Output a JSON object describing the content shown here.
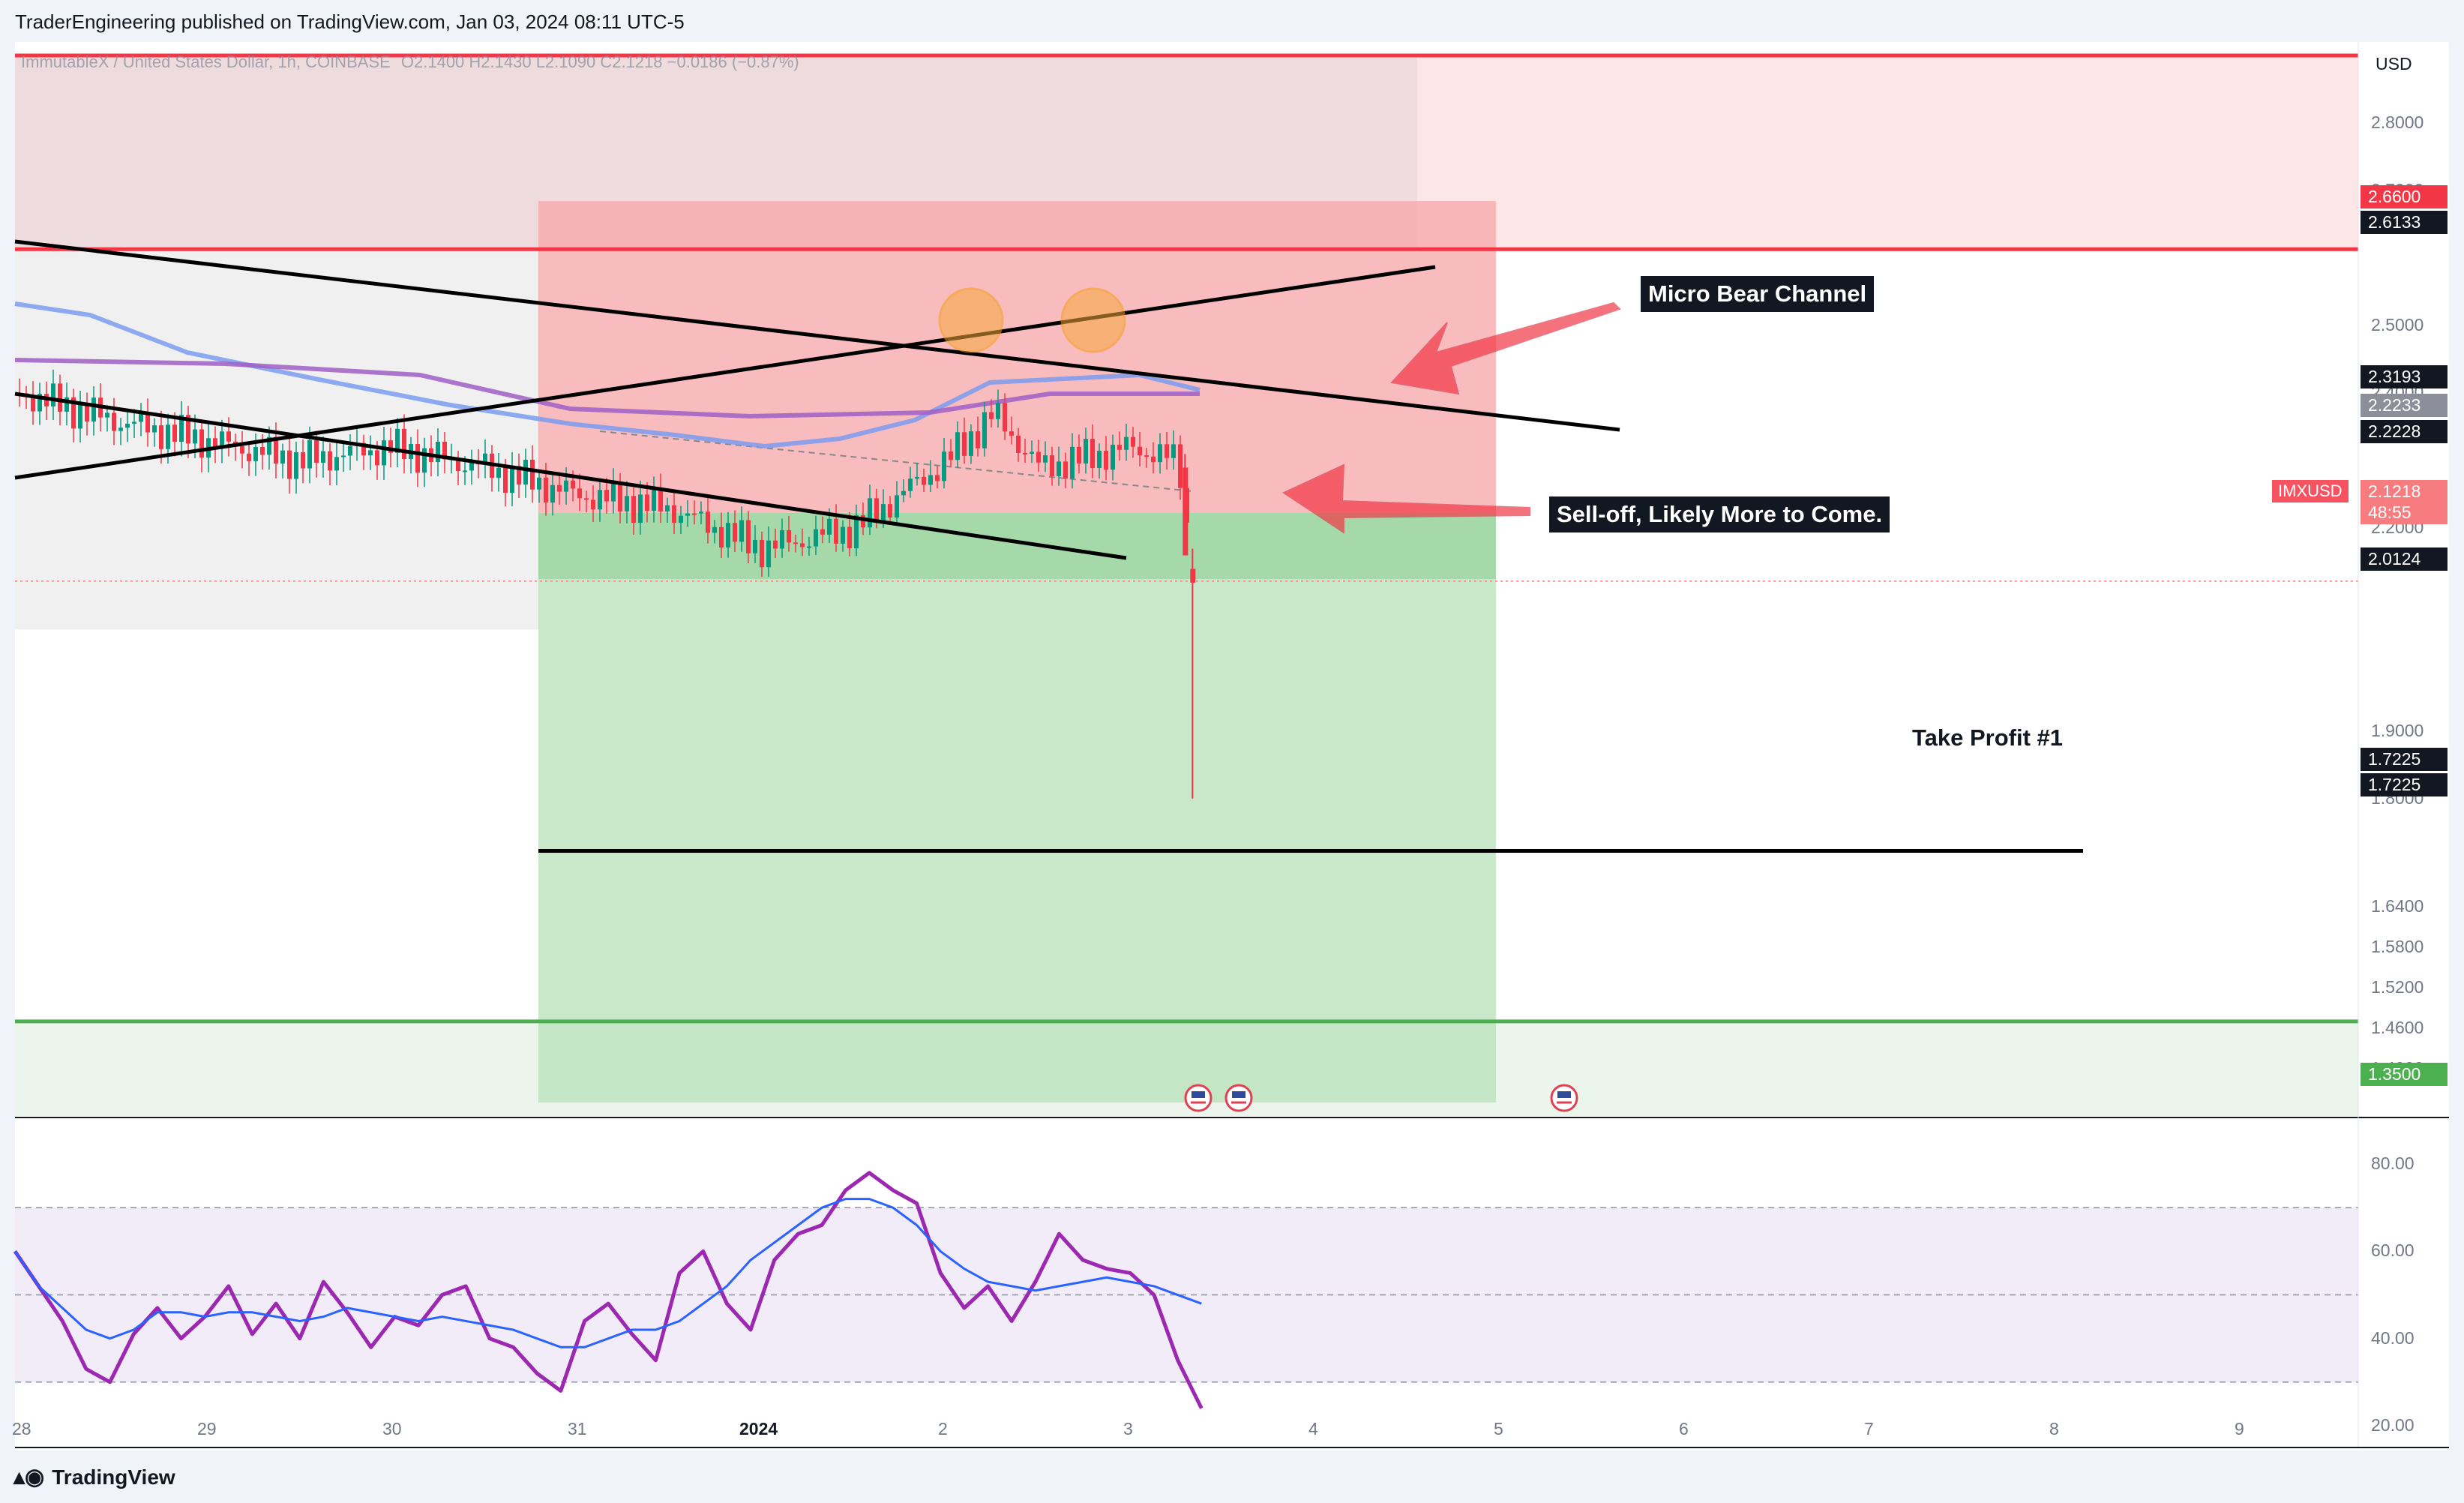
{
  "header": {
    "published": "TraderEngineering published on TradingView.com, Jan 03, 2024 08:11 UTC-5"
  },
  "legend": {
    "symbol": "ImmutableX / United States Dollar, 1h, COINBASE",
    "ohlc": "O2.1400  H2.1430  L2.1090  C2.1218  −0.0186 (−0.87%)"
  },
  "footer": {
    "brand": "TradingView"
  },
  "annotations": {
    "micro_bear_channel": "Micro Bear Channel",
    "sell_off": "Sell-off, Likely More to Come.",
    "take_profit": "Take Profit #1"
  },
  "price_axis": {
    "currency": "USD",
    "ticks": [
      "2.8000",
      "2.7000",
      "2.5000",
      "2.4000",
      "2.2000",
      "1.9000",
      "1.8000",
      "1.6400",
      "1.5800",
      "1.5200",
      "1.4600",
      "1.4000"
    ],
    "tags": [
      {
        "text": "2.6600",
        "bg": "#f23645"
      },
      {
        "text": "2.6133",
        "bg": "#131722"
      },
      {
        "text": "2.3193",
        "bg": "#131722"
      },
      {
        "text": "2.2233",
        "bg": "#8c8f99"
      },
      {
        "text": "2.2228",
        "bg": "#131722"
      },
      {
        "text": "2.1218",
        "bg": "#f77c80"
      },
      {
        "text": "48:55",
        "bg": "#f77c80"
      },
      {
        "text": "2.0124",
        "bg": "#131722"
      },
      {
        "text": "1.7225",
        "bg": "#131722"
      },
      {
        "text": "1.7225",
        "bg": "#131722"
      },
      {
        "text": "1.3500",
        "bg": "#4caf50"
      }
    ],
    "symbol_tag": "IMXUSD"
  },
  "rsi_axis": {
    "ticks": [
      "80.00",
      "60.00",
      "40.00",
      "20.00"
    ]
  },
  "time_axis": {
    "labels": [
      "28",
      "29",
      "30",
      "31",
      "2024",
      "2",
      "3",
      "4",
      "5",
      "6",
      "7",
      "8",
      "9"
    ]
  },
  "colors": {
    "red_line": "#f23645",
    "green_line": "#4caf50",
    "stop_zone": "#f7a5a8",
    "target_zone": "#b7e0b8",
    "ema_fast": "#7b9cf0",
    "ema_slow": "#a05fc6",
    "rsi": "#9c27b0",
    "rsi_ma": "#2962ff",
    "bull": "#089981",
    "bear": "#f23645"
  },
  "chart_data": {
    "type": "candlestick",
    "instrument": "IMXUSD",
    "timeframe": "1h",
    "ylim": [
      1.33,
      2.92
    ],
    "x_range": [
      "2023-12-28",
      "2024-01-09"
    ],
    "levels": {
      "resistance_top": 2.9,
      "resistance": 2.6133,
      "support": 1.47,
      "take_profit": 1.7225,
      "entry": 2.2228,
      "stop": 2.66,
      "target": 1.35
    },
    "close_path": [
      [
        "2023-12-28",
        2.4
      ],
      [
        "2023-12-28 12:00",
        2.36
      ],
      [
        "2023-12-29",
        2.33
      ],
      [
        "2023-12-29 12:00",
        2.3
      ],
      [
        "2023-12-30",
        2.32
      ],
      [
        "2023-12-30 12:00",
        2.29
      ],
      [
        "2023-12-31",
        2.25
      ],
      [
        "2023-12-31 12:00",
        2.23
      ],
      [
        "2024-01-01",
        2.17
      ],
      [
        "2024-01-01 12:00",
        2.2
      ],
      [
        "2024-01-02",
        2.3
      ],
      [
        "2024-01-02 06:00",
        2.37
      ],
      [
        "2024-01-02 12:00",
        2.29
      ],
      [
        "2024-01-03",
        2.32
      ],
      [
        "2024-01-03 06:00",
        2.3
      ],
      [
        "2024-01-03 08:00",
        2.1218
      ]
    ],
    "spike_low": 1.8,
    "rsi": {
      "ylim": [
        15,
        90
      ],
      "bands": [
        30,
        50,
        70
      ],
      "values": [
        60,
        52,
        44,
        33,
        30,
        41,
        47,
        40,
        45,
        52,
        41,
        48,
        40,
        53,
        46,
        38,
        45,
        43,
        50,
        52,
        40,
        38,
        32,
        28,
        44,
        48,
        41,
        35,
        55,
        60,
        48,
        42,
        58,
        64,
        66,
        74,
        78,
        74,
        71,
        55,
        47,
        52,
        44,
        53,
        64,
        58,
        56,
        55,
        50,
        35,
        24
      ]
    },
    "rsi_ma": [
      60,
      52,
      47,
      42,
      40,
      42,
      46,
      46,
      45,
      46,
      46,
      45,
      44,
      45,
      47,
      46,
      45,
      44,
      45,
      44,
      43,
      42,
      40,
      38,
      38,
      40,
      42,
      42,
      44,
      48,
      52,
      58,
      62,
      66,
      70,
      72,
      72,
      70,
      66,
      60,
      56,
      53,
      52,
      51,
      52,
      53,
      54,
      53,
      52,
      50,
      48
    ]
  }
}
